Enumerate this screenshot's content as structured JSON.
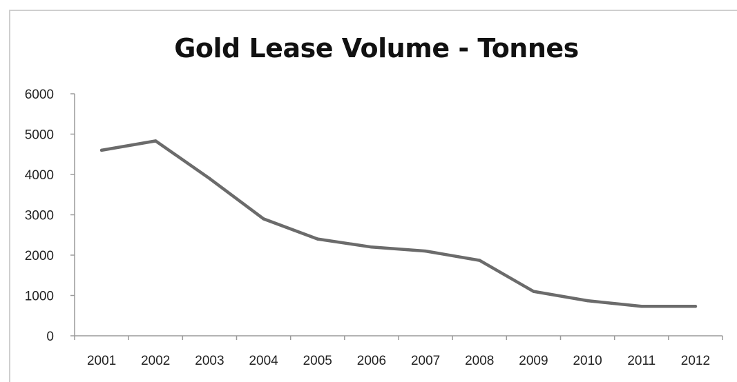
{
  "chart_data": {
    "type": "line",
    "title": "Gold Lease Volume - Tonnes",
    "xlabel": "",
    "ylabel": "",
    "categories": [
      "2001",
      "2002",
      "2003",
      "2004",
      "2005",
      "2006",
      "2007",
      "2008",
      "2009",
      "2010",
      "2011",
      "2012"
    ],
    "series": [
      {
        "values": [
          4600,
          4830,
          3900,
          2900,
          2400,
          2200,
          2100,
          1870,
          1100,
          870,
          730,
          730
        ]
      }
    ],
    "ylim": [
      0,
      6000
    ],
    "yticks": [
      0,
      1000,
      2000,
      3000,
      4000,
      5000,
      6000
    ],
    "grid": false,
    "legend": "none",
    "line_color": "#6b6b6b",
    "axis_color": "#9a9a9a"
  }
}
